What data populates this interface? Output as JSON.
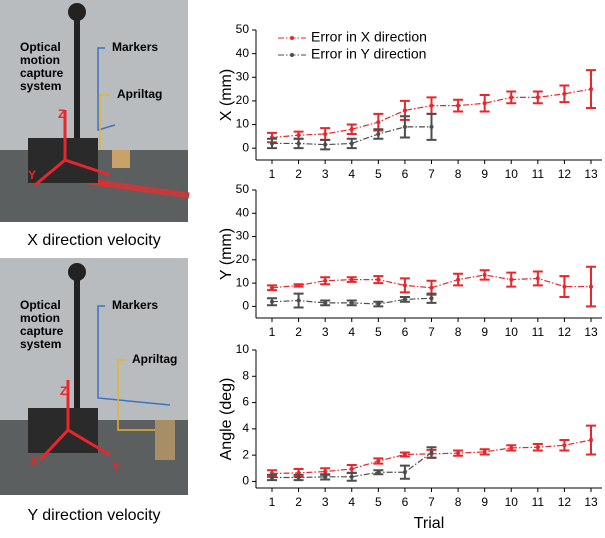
{
  "panels": [
    {
      "caption": "X direction velocity",
      "labels": {
        "system": [
          "Optical",
          "motion",
          "capture",
          "system"
        ],
        "markers": "Markers",
        "apriltag": "Apriltag",
        "z": "Z",
        "x": "X",
        "y": "Y"
      }
    },
    {
      "caption": "Y direction velocity",
      "labels": {
        "system": [
          "Optical",
          "motion",
          "capture",
          "system"
        ],
        "markers": "Markers",
        "apriltag": "Apriltag",
        "z": "Z",
        "x": "X",
        "y": "Y"
      }
    }
  ],
  "chart_data": [
    {
      "type": "line",
      "ylabel": "X (mm)",
      "categories": [
        1,
        2,
        3,
        4,
        5,
        6,
        7,
        8,
        9,
        10,
        11,
        12,
        13
      ],
      "ylim": [
        -5,
        50
      ],
      "yticks": [
        0,
        10,
        20,
        30,
        40,
        50
      ],
      "legend": "top-left",
      "series": [
        {
          "name": "Error in  X direction",
          "color": "#e8262b",
          "values": [
            4.5,
            5.5,
            6,
            8,
            11,
            16,
            18,
            18,
            19,
            21.5,
            21.5,
            23,
            25
          ],
          "errors": [
            2,
            1.5,
            2.5,
            2,
            3.5,
            4,
            3.5,
            2.5,
            3.5,
            2.5,
            2.5,
            3.5,
            8
          ]
        },
        {
          "name": "Error in  Y direction",
          "color": "#4d4d4d",
          "values": [
            2,
            2,
            1.5,
            2,
            6,
            9,
            9,
            null,
            null,
            null,
            null,
            null,
            null
          ],
          "errors": [
            2,
            2,
            2,
            2,
            2,
            4.5,
            5.5,
            null,
            null,
            null,
            null,
            null,
            null
          ]
        }
      ]
    },
    {
      "type": "line",
      "ylabel": "Y (mm)",
      "categories": [
        1,
        2,
        3,
        4,
        5,
        6,
        7,
        8,
        9,
        10,
        11,
        12,
        13
      ],
      "ylim": [
        -5,
        50
      ],
      "yticks": [
        0,
        10,
        20,
        30,
        40,
        50
      ],
      "series": [
        {
          "color": "#e8262b",
          "values": [
            8,
            9,
            11,
            11.5,
            11.5,
            9,
            8,
            11.5,
            13.5,
            11.5,
            12,
            8.5,
            8.5
          ],
          "errors": [
            1,
            0.5,
            1.5,
            1,
            1.5,
            3,
            3,
            2.5,
            2,
            3,
            3,
            4.5,
            8.5
          ]
        },
        {
          "color": "#4d4d4d",
          "values": [
            2,
            2.5,
            1.5,
            1.5,
            1,
            3,
            3.5,
            null,
            null,
            null,
            null,
            null,
            null
          ],
          "errors": [
            1.5,
            3,
            1,
            1,
            1,
            1,
            2,
            null,
            null,
            null,
            null,
            null,
            null
          ]
        }
      ]
    },
    {
      "type": "line",
      "ylabel": "Angle (deg)",
      "xlabel": "Trial",
      "categories": [
        1,
        2,
        3,
        4,
        5,
        6,
        7,
        8,
        9,
        10,
        11,
        12,
        13
      ],
      "ylim": [
        -0.5,
        10
      ],
      "yticks": [
        0,
        2,
        4,
        6,
        8,
        10
      ],
      "series": [
        {
          "color": "#e8262b",
          "values": [
            0.6,
            0.65,
            0.75,
            0.95,
            1.55,
            2.05,
            2.1,
            2.15,
            2.25,
            2.55,
            2.6,
            2.75,
            3.15
          ],
          "errors": [
            0.25,
            0.3,
            0.25,
            0.3,
            0.2,
            0.15,
            0.3,
            0.2,
            0.2,
            0.2,
            0.25,
            0.4,
            1.1
          ]
        },
        {
          "color": "#4d4d4d",
          "values": [
            0.3,
            0.3,
            0.35,
            0.35,
            0.7,
            0.7,
            2.2,
            null,
            null,
            null,
            null,
            null,
            null
          ],
          "errors": [
            0.2,
            0.2,
            0.2,
            0.3,
            0.15,
            0.5,
            0.4,
            null,
            null,
            null,
            null,
            null,
            null
          ]
        }
      ]
    }
  ]
}
